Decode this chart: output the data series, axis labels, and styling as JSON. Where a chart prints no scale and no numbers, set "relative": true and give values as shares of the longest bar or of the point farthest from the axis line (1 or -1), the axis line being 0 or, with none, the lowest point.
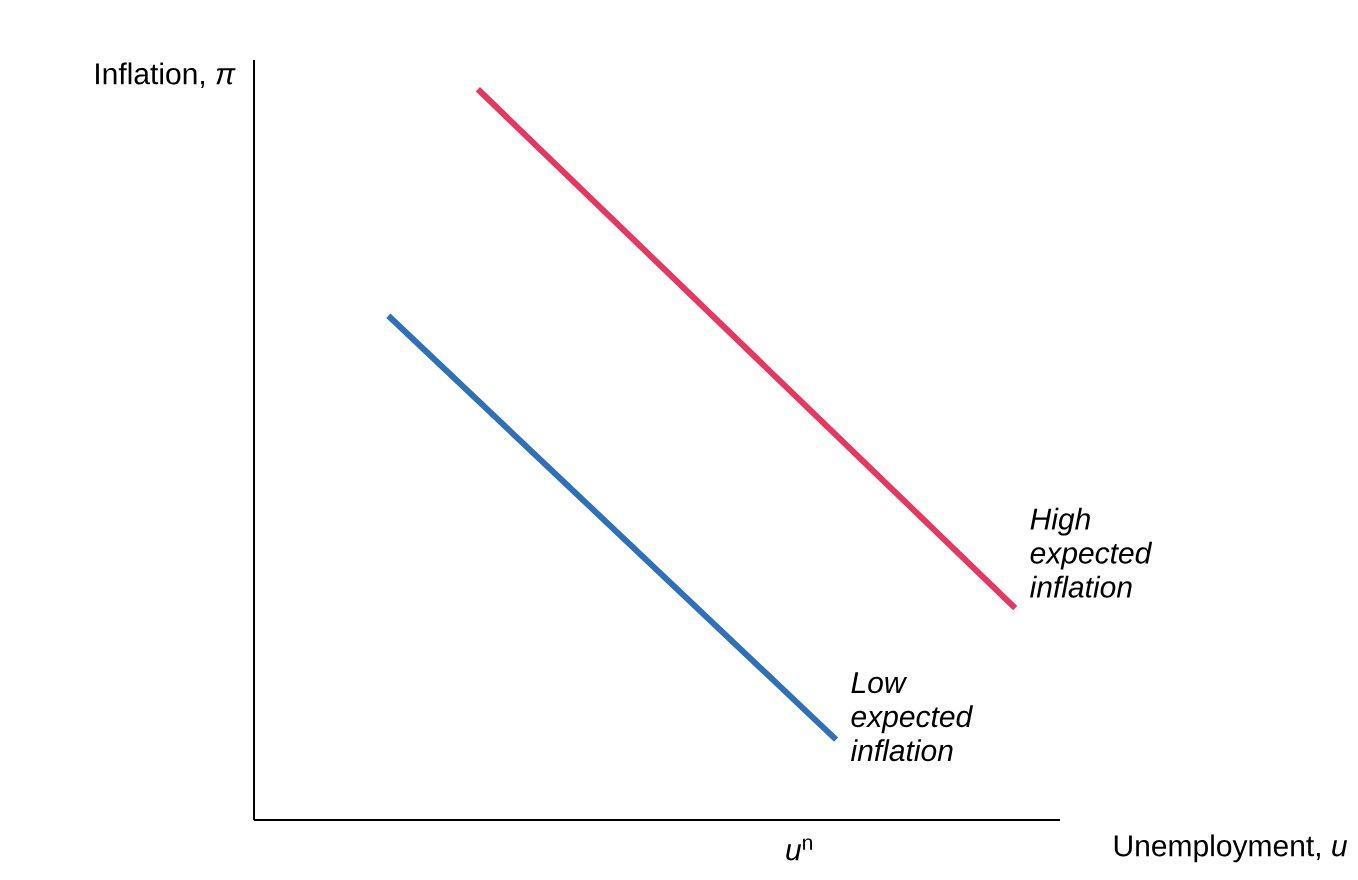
{
  "chart_data": {
    "type": "line",
    "relative": true,
    "ylabel": "Inflation, *π*",
    "xlabel": "Unemployment, *u*",
    "annotations": [
      "*u*$^{n}$"
    ],
    "categories": [
      null,
      null,
      null,
      null,
      null,
      null,
      null,
      null,
      null
    ],
    "series": [
      {
        "name": "High expected inflation",
        "color": "#e8375e",
        "values": [
          null,
          null,
          1,
          null,
          null,
          null,
          null,
          null,
          0.29
        ]
      },
      {
        "name": "Low expected inflation",
        "color": "#2f70b8",
        "values": [
          null,
          0.69,
          null,
          null,
          null,
          null,
          0.11,
          null,
          null
        ]
      }
    ]
  }
}
